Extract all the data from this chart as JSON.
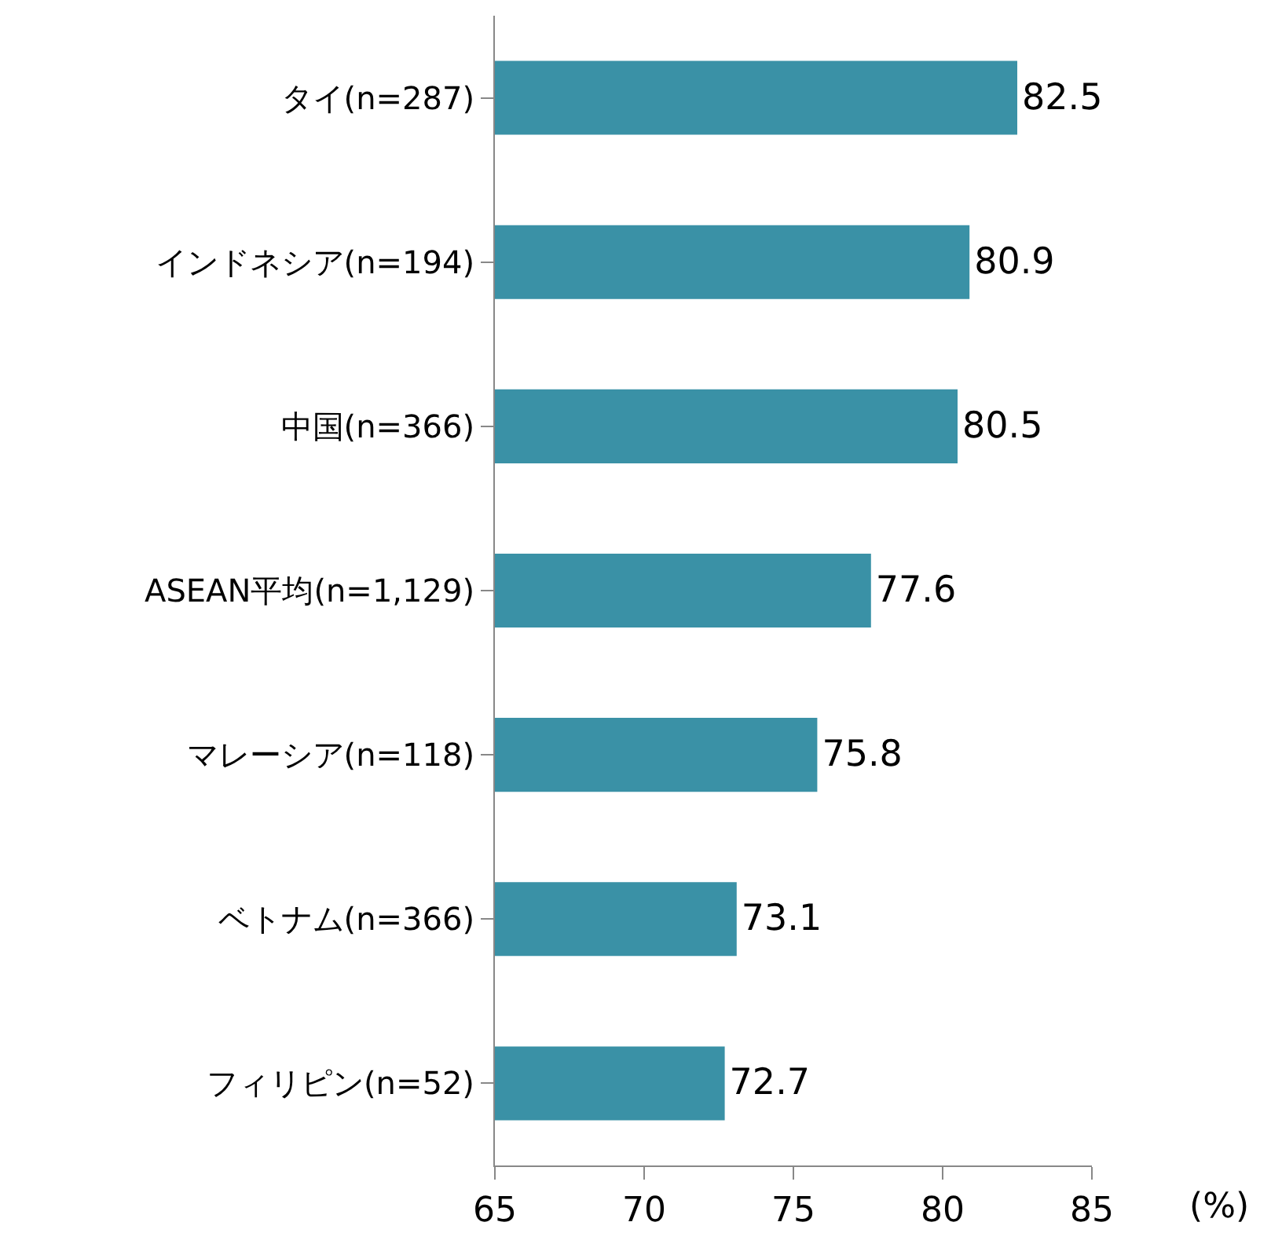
{
  "chart_data": {
    "type": "bar",
    "orientation": "horizontal",
    "categories": [
      "タイ(n=287)",
      "インドネシア(n=194)",
      "中国(n=366)",
      "ASEAN平均(n=1,129)",
      "マレーシア(n=118)",
      "ベトナム(n=366)",
      "フィリピン(n=52)"
    ],
    "values": [
      82.5,
      80.9,
      80.5,
      77.6,
      75.8,
      73.1,
      72.7
    ],
    "color": "#3a91a6",
    "xlim": [
      65,
      85
    ],
    "xticks": [
      65,
      70,
      75,
      80,
      85
    ],
    "xlabel": "(%)",
    "data_labels": true
  }
}
